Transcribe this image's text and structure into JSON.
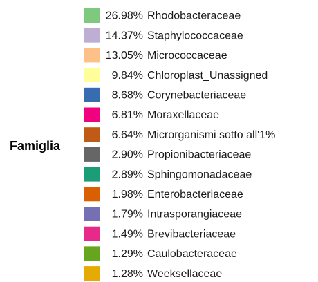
{
  "legend": {
    "title": "Famiglia",
    "items": [
      {
        "percent": "26.98%",
        "name": "Rhodobacteraceae",
        "color": "#7fc97f"
      },
      {
        "percent": "14.37%",
        "name": "Staphylococcaceae",
        "color": "#beaed4"
      },
      {
        "percent": "13.05%",
        "name": "Micrococcaceae",
        "color": "#fdc086"
      },
      {
        "percent": "9.84%",
        "name": "Chloroplast_Unassigned",
        "color": "#ffff99"
      },
      {
        "percent": "8.68%",
        "name": "Corynebacteriaceae",
        "color": "#386cb0"
      },
      {
        "percent": "6.81%",
        "name": "Moraxellaceae",
        "color": "#f0027f"
      },
      {
        "percent": "6.64%",
        "name": "Microrganismi sotto all'1%",
        "color": "#bf5b17"
      },
      {
        "percent": "2.90%",
        "name": "Propionibacteriaceae",
        "color": "#666666"
      },
      {
        "percent": "2.89%",
        "name": "Sphingomonadaceae",
        "color": "#1b9e77"
      },
      {
        "percent": "1.98%",
        "name": "Enterobacteriaceae",
        "color": "#d95f02"
      },
      {
        "percent": "1.79%",
        "name": "Intrasporangiaceae",
        "color": "#7570b3"
      },
      {
        "percent": "1.49%",
        "name": "Brevibacteriaceae",
        "color": "#e7298a"
      },
      {
        "percent": "1.29%",
        "name": "Caulobacteraceae",
        "color": "#66a61e"
      },
      {
        "percent": "1.28%",
        "name": "Weeksellaceae",
        "color": "#e6ab02"
      }
    ]
  }
}
